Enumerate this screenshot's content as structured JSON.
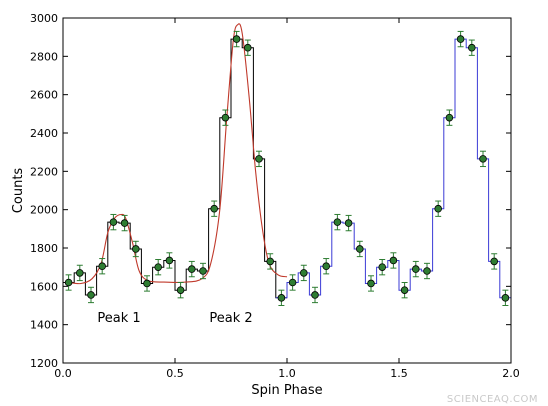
{
  "chart_data": {
    "type": "line",
    "xlabel": "Spin Phase",
    "ylabel": "Counts",
    "xlim": [
      0.0,
      2.0
    ],
    "ylim": [
      1200,
      3000
    ],
    "xticks": [
      0.0,
      0.5,
      1.0,
      1.5,
      2.0
    ],
    "xtick_labels": [
      "0.0",
      "0.5",
      "1.0",
      "1.5",
      "2.0"
    ],
    "yticks": [
      1200,
      1400,
      1600,
      1800,
      2000,
      2200,
      2400,
      2600,
      2800,
      3000
    ],
    "ytick_labels": [
      "1200",
      "1400",
      "1600",
      "1800",
      "2000",
      "2200",
      "2400",
      "2600",
      "2800",
      "3000"
    ],
    "grid": false,
    "bin_width": 0.05,
    "series": [
      {
        "style": "step",
        "color_first_cycle": "#000000",
        "color_second_cycle": "#3b3bd6",
        "x": [
          0.025,
          0.075,
          0.125,
          0.175,
          0.225,
          0.275,
          0.325,
          0.375,
          0.425,
          0.475,
          0.525,
          0.575,
          0.625,
          0.675,
          0.725,
          0.775,
          0.825,
          0.875,
          0.925,
          0.975,
          1.025,
          1.075,
          1.125,
          1.175,
          1.225,
          1.275,
          1.325,
          1.375,
          1.425,
          1.475,
          1.525,
          1.575,
          1.625,
          1.675,
          1.725,
          1.775,
          1.825,
          1.875,
          1.925,
          1.975
        ],
        "y": [
          1620,
          1670,
          1555,
          1705,
          1935,
          1930,
          1795,
          1615,
          1700,
          1735,
          1580,
          1690,
          1680,
          2005,
          2480,
          2890,
          2845,
          2265,
          1730,
          1540,
          1620,
          1670,
          1555,
          1705,
          1935,
          1930,
          1795,
          1615,
          1700,
          1735,
          1580,
          1690,
          1680,
          2005,
          2480,
          2890,
          2845,
          2265,
          1730,
          1540
        ],
        "yerr": 40,
        "marker": "circle",
        "marker_color": "#2e7d32",
        "errorbar_color": "#2e7d32"
      },
      {
        "style": "model",
        "color": "#c0392b",
        "x": [
          0.03,
          0.08,
          0.13,
          0.17,
          0.2,
          0.23,
          0.26,
          0.28,
          0.31,
          0.34,
          0.38,
          0.45,
          0.55,
          0.62,
          0.66,
          0.7,
          0.73,
          0.76,
          0.78,
          0.8,
          0.83,
          0.86,
          0.89,
          0.92,
          0.96,
          1.0
        ],
        "y": [
          1620,
          1615,
          1640,
          1720,
          1880,
          1955,
          1975,
          1955,
          1830,
          1680,
          1630,
          1622,
          1622,
          1640,
          1720,
          2000,
          2460,
          2880,
          2965,
          2920,
          2600,
          2200,
          1900,
          1720,
          1660,
          1650
        ]
      }
    ],
    "annotations": [
      {
        "text": "Peak 1",
        "x": 0.25,
        "y": 1415
      },
      {
        "text": "Peak 2",
        "x": 0.75,
        "y": 1415
      }
    ],
    "watermark": "SCIENCEAQ.COM"
  }
}
